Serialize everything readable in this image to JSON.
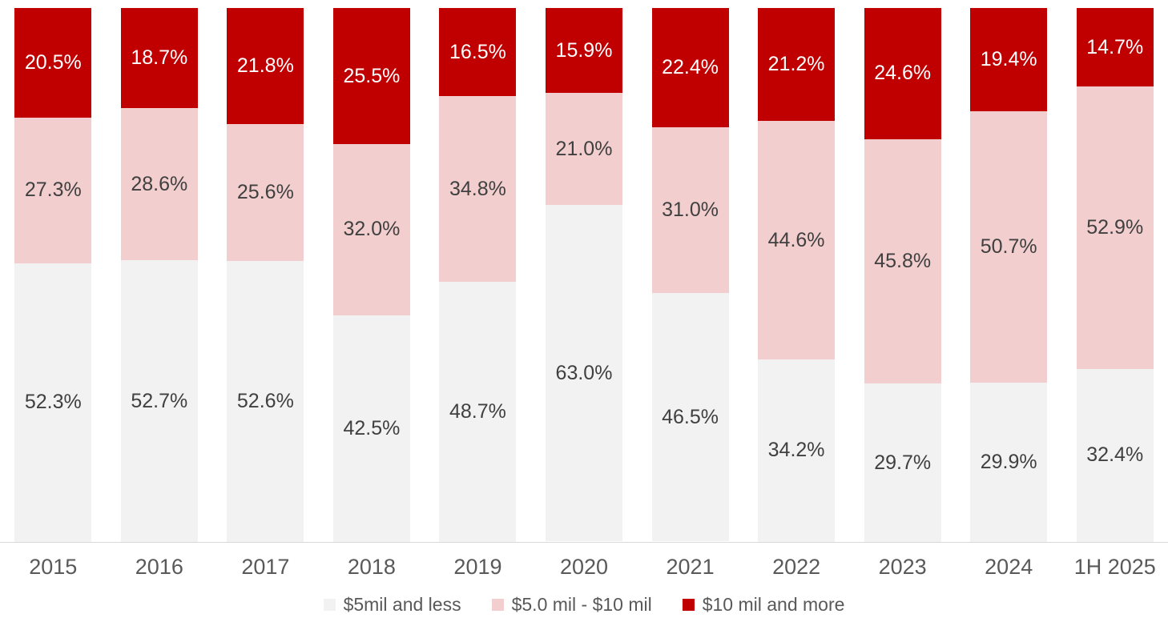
{
  "chart_data": {
    "type": "bar",
    "variant": "stacked-100",
    "unit": "%",
    "grid": false,
    "legend_position": "bottom",
    "ylim": [
      0,
      100
    ],
    "axis_line_color": "#d9d9d9",
    "axis_text_color": "#595959",
    "categories": [
      "2015",
      "2016",
      "2017",
      "2018",
      "2019",
      "2020",
      "2021",
      "2022",
      "2023",
      "2024",
      "1H 2025"
    ],
    "series": [
      {
        "name": "$5mil and less",
        "color": "#f2f2f2",
        "label_color": "#404040",
        "values": [
          52.3,
          52.7,
          52.6,
          42.5,
          48.7,
          63.0,
          46.5,
          34.2,
          29.7,
          29.9,
          32.4
        ]
      },
      {
        "name": "$5.0 mil - $10 mil",
        "color": "#f2cece",
        "label_color": "#404040",
        "values": [
          27.3,
          28.6,
          25.6,
          32.0,
          34.8,
          21.0,
          31.0,
          44.6,
          45.8,
          50.7,
          52.9
        ]
      },
      {
        "name": "$10 mil and more",
        "color": "#c00000",
        "label_color": "#ffffff",
        "values": [
          20.5,
          18.7,
          21.8,
          25.5,
          16.5,
          15.9,
          22.4,
          21.2,
          24.6,
          19.4,
          14.7
        ]
      }
    ]
  }
}
